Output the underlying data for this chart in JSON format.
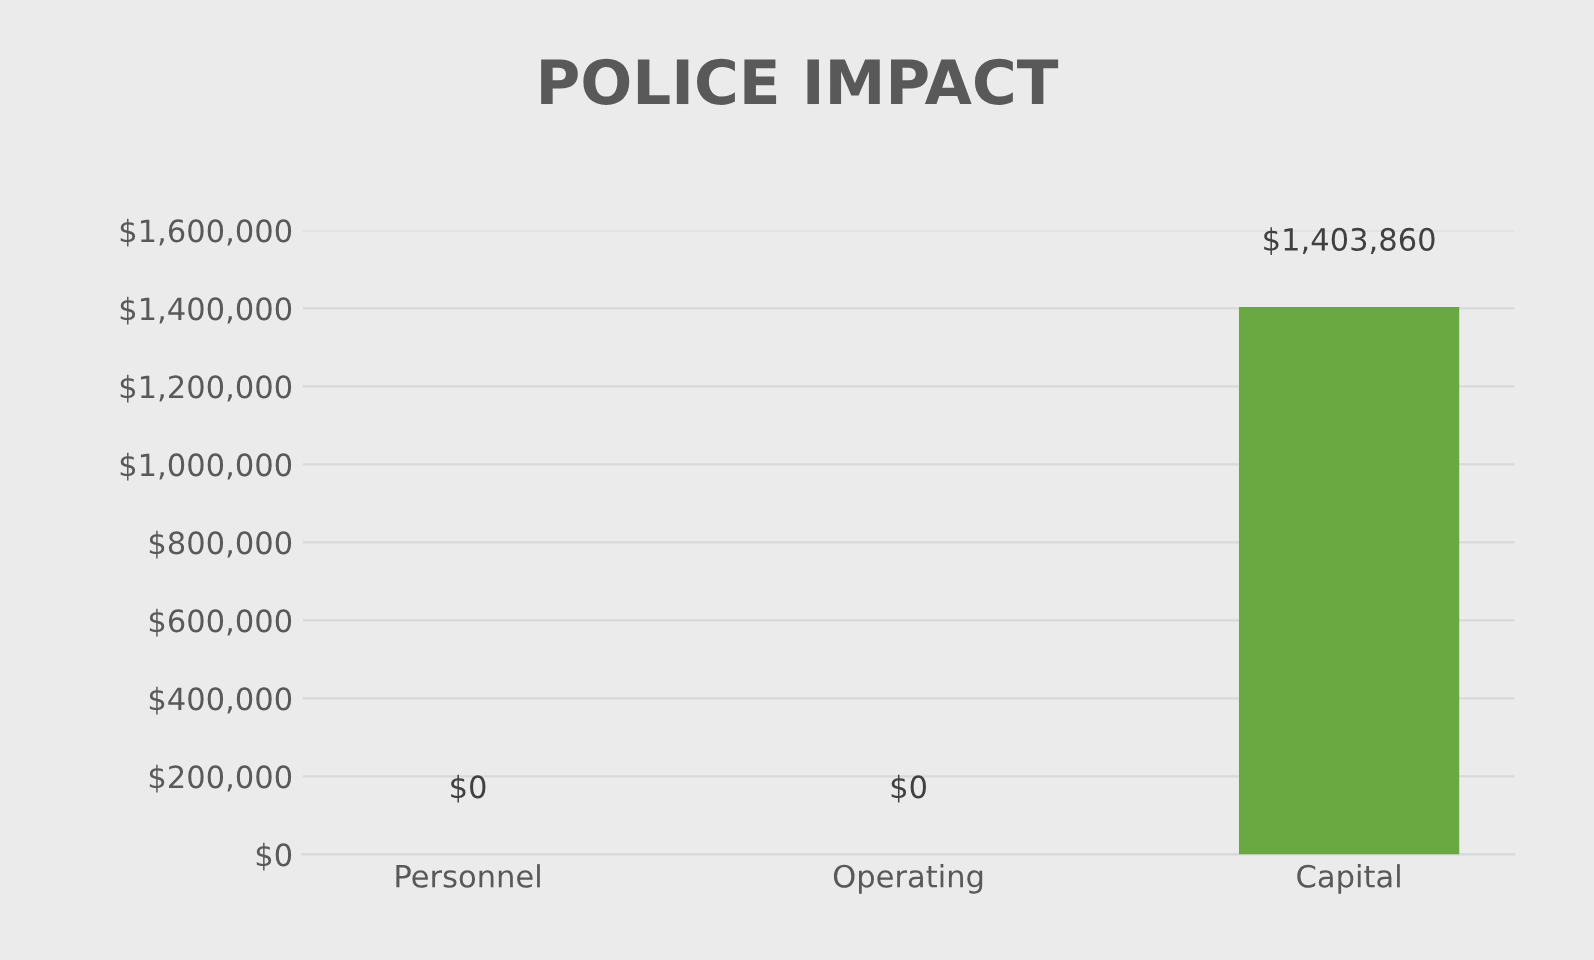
{
  "chart_data": {
    "type": "bar",
    "title": "POLICE IMPACT",
    "categories": [
      "Personnel",
      "Operating",
      "Capital"
    ],
    "values": [
      0,
      0,
      1403860
    ],
    "color": "#6aa842",
    "value_labels": [
      "$0",
      "$0",
      "$1,403,860"
    ],
    "ylim": [
      0,
      1600000
    ],
    "yticks": [
      {
        "value": 0,
        "label": "$0"
      },
      {
        "value": 200000,
        "label": "$200,000"
      },
      {
        "value": 400000,
        "label": "$400,000"
      },
      {
        "value": 600000,
        "label": "$600,000"
      },
      {
        "value": 800000,
        "label": "$800,000"
      },
      {
        "value": 1000000,
        "label": "$1,000,000"
      },
      {
        "value": 1200000,
        "label": "$1,200,000"
      },
      {
        "value": 1400000,
        "label": "$1,400,000"
      },
      {
        "value": 1600000,
        "label": "$1,600,000"
      }
    ],
    "grid": "y",
    "legend": false
  }
}
